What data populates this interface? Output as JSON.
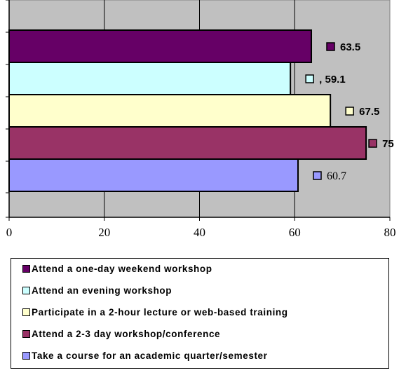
{
  "chart_data": {
    "type": "bar",
    "orientation": "horizontal",
    "xlim": [
      0,
      80
    ],
    "x_ticks": [
      "0",
      "20",
      "40",
      "60",
      "80"
    ],
    "grid": true,
    "legend_placement": "bottom",
    "plot_background": "#c0c0c0",
    "series": [
      {
        "name": "Attend a one-day weekend workshop",
        "value": 63.5,
        "label": "63.5",
        "color": "#660066"
      },
      {
        "name": "Attend an evening workshop",
        "value": 59.1,
        "label": ", 59.1",
        "color": "#ccffff"
      },
      {
        "name": "Participate in a 2-hour lecture or web-based training",
        "value": 67.5,
        "label": "67.5",
        "color": "#ffffcc"
      },
      {
        "name": "Attend a 2-3 day workshop/conference",
        "value": 75,
        "label": "75",
        "color": "#993366"
      },
      {
        "name": "Take a course for an academic quarter/semester",
        "value": 60.7,
        "label": "60.7",
        "color": "#9999ff"
      }
    ]
  }
}
